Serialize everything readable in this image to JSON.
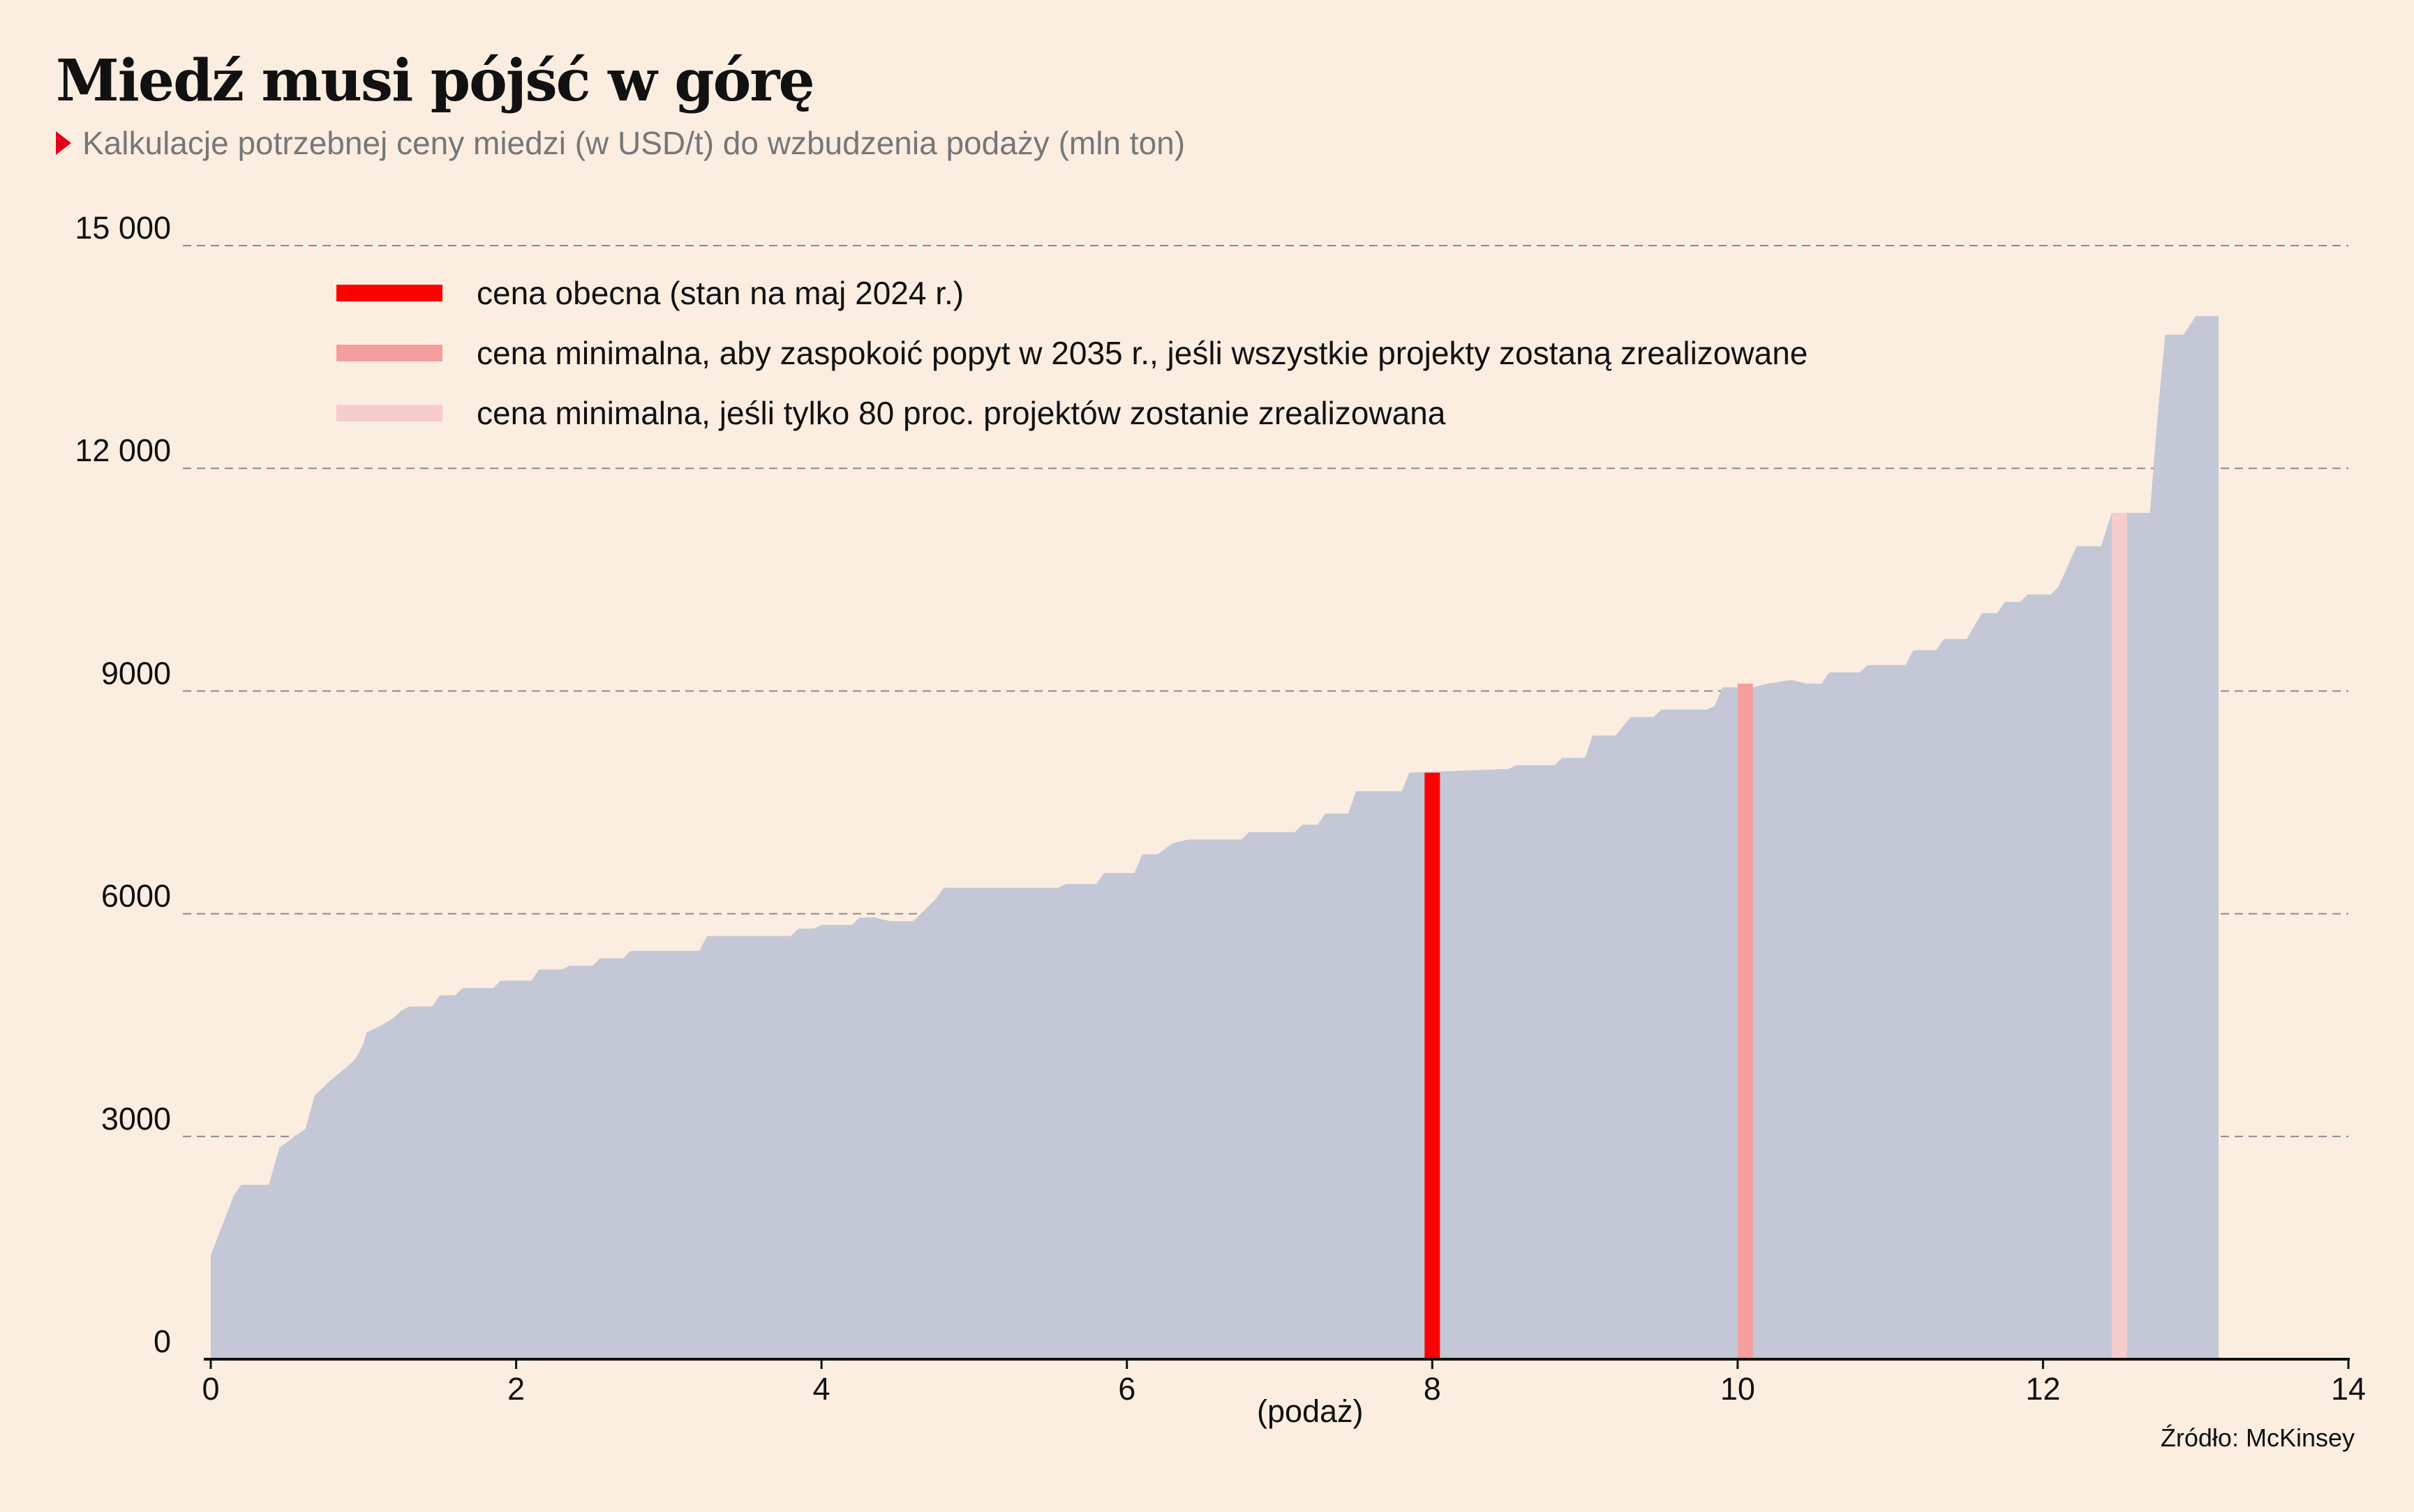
{
  "header": {
    "title": "Miedź musi pójść w górę",
    "subtitle": "Kalkulacje potrzebnej ceny miedzi (w USD/t) do wzbudzenia podaży (mln ton)"
  },
  "footer": {
    "source": "Źródło: McKinsey"
  },
  "colors": {
    "background": "#fbeee1",
    "area": "#c3c7d6",
    "current_price": "#ff0000",
    "min_price_all_projects": "#f59e9e",
    "min_price_80_percent": "#f7cccc",
    "subtitle_marker": "#e3001b"
  },
  "chart_data": {
    "type": "area",
    "title": "Miedź musi pójść w górę",
    "subtitle": "Kalkulacje potrzebnej ceny miedzi (w USD/t) do wzbudzenia podaży (mln ton)",
    "xlabel": "(podaż)",
    "ylabel": "",
    "xlim": [
      0,
      14
    ],
    "ylim": [
      0,
      15000
    ],
    "x_ticks": [
      0,
      2,
      4,
      6,
      8,
      10,
      12,
      14
    ],
    "x_tick_labels": [
      "0",
      "2",
      "4",
      "6",
      "8",
      "10",
      "12",
      "14"
    ],
    "y_ticks": [
      0,
      3000,
      6000,
      9000,
      12000,
      15000
    ],
    "y_tick_labels": [
      "0",
      "3000",
      "6000",
      "9000",
      "12 000",
      "15 000"
    ],
    "grid": "horizontal dashed",
    "legend_position": "top-left",
    "supply_curve": [
      [
        0.0,
        1400
      ],
      [
        0.15,
        2200
      ],
      [
        0.2,
        2350
      ],
      [
        0.38,
        2350
      ],
      [
        0.45,
        2850
      ],
      [
        0.55,
        3000
      ],
      [
        0.62,
        3100
      ],
      [
        0.68,
        3550
      ],
      [
        0.78,
        3750
      ],
      [
        0.9,
        3950
      ],
      [
        0.95,
        4050
      ],
      [
        1.0,
        4250
      ],
      [
        1.02,
        4400
      ],
      [
        1.12,
        4500
      ],
      [
        1.2,
        4600
      ],
      [
        1.25,
        4700
      ],
      [
        1.3,
        4750
      ],
      [
        1.45,
        4750
      ],
      [
        1.5,
        4900
      ],
      [
        1.6,
        4900
      ],
      [
        1.65,
        5000
      ],
      [
        1.85,
        5000
      ],
      [
        1.9,
        5100
      ],
      [
        2.1,
        5100
      ],
      [
        2.15,
        5250
      ],
      [
        2.3,
        5250
      ],
      [
        2.35,
        5300
      ],
      [
        2.5,
        5300
      ],
      [
        2.55,
        5400
      ],
      [
        2.7,
        5400
      ],
      [
        2.75,
        5500
      ],
      [
        3.2,
        5500
      ],
      [
        3.25,
        5700
      ],
      [
        3.8,
        5700
      ],
      [
        3.85,
        5800
      ],
      [
        3.95,
        5800
      ],
      [
        4.0,
        5850
      ],
      [
        4.2,
        5850
      ],
      [
        4.25,
        5950
      ],
      [
        4.35,
        5950
      ],
      [
        4.45,
        5900
      ],
      [
        4.6,
        5900
      ],
      [
        4.75,
        6200
      ],
      [
        4.8,
        6350
      ],
      [
        5.55,
        6350
      ],
      [
        5.6,
        6400
      ],
      [
        5.8,
        6400
      ],
      [
        5.85,
        6550
      ],
      [
        6.05,
        6550
      ],
      [
        6.1,
        6800
      ],
      [
        6.2,
        6800
      ],
      [
        6.3,
        6950
      ],
      [
        6.4,
        7000
      ],
      [
        6.6,
        7000
      ],
      [
        6.65,
        7000
      ],
      [
        6.75,
        7000
      ],
      [
        6.8,
        7100
      ],
      [
        7.1,
        7100
      ],
      [
        7.15,
        7200
      ],
      [
        7.25,
        7200
      ],
      [
        7.3,
        7350
      ],
      [
        7.45,
        7350
      ],
      [
        7.5,
        7650
      ],
      [
        7.8,
        7650
      ],
      [
        7.85,
        7900
      ],
      [
        8.5,
        7950
      ],
      [
        8.55,
        8000
      ],
      [
        8.8,
        8000
      ],
      [
        8.85,
        8100
      ],
      [
        9.0,
        8100
      ],
      [
        9.05,
        8400
      ],
      [
        9.2,
        8400
      ],
      [
        9.3,
        8650
      ],
      [
        9.45,
        8650
      ],
      [
        9.5,
        8750
      ],
      [
        9.8,
        8750
      ],
      [
        9.85,
        8800
      ],
      [
        9.9,
        9050
      ],
      [
        10.1,
        9050
      ],
      [
        10.2,
        9100
      ],
      [
        10.35,
        9150
      ],
      [
        10.45,
        9100
      ],
      [
        10.55,
        9100
      ],
      [
        10.6,
        9250
      ],
      [
        10.8,
        9250
      ],
      [
        10.85,
        9350
      ],
      [
        11.1,
        9350
      ],
      [
        11.15,
        9550
      ],
      [
        11.3,
        9550
      ],
      [
        11.35,
        9700
      ],
      [
        11.5,
        9700
      ],
      [
        11.6,
        10050
      ],
      [
        11.7,
        10050
      ],
      [
        11.75,
        10200
      ],
      [
        11.85,
        10200
      ],
      [
        11.9,
        10300
      ],
      [
        12.05,
        10300
      ],
      [
        12.1,
        10400
      ],
      [
        12.22,
        10950
      ],
      [
        12.38,
        10950
      ],
      [
        12.45,
        11400
      ],
      [
        12.7,
        11400
      ],
      [
        12.75,
        12700
      ],
      [
        12.8,
        13800
      ],
      [
        12.92,
        13800
      ],
      [
        13.0,
        14050
      ],
      [
        13.15,
        14050
      ]
    ],
    "series": [
      {
        "name": "cena obecna (stan na maj 2024 r.)",
        "x": 8.0,
        "y": 7900
      },
      {
        "name": "cena minimalna, aby zaspokoić popyt w 2035 r., jeśli wszystkie projekty zostaną zrealizowane",
        "x": 10.05,
        "y": 9100
      },
      {
        "name": "cena minimalna, jeśli tylko 80 proc. projektów zostanie zrealizowana",
        "x": 12.5,
        "y": 11400
      }
    ]
  }
}
